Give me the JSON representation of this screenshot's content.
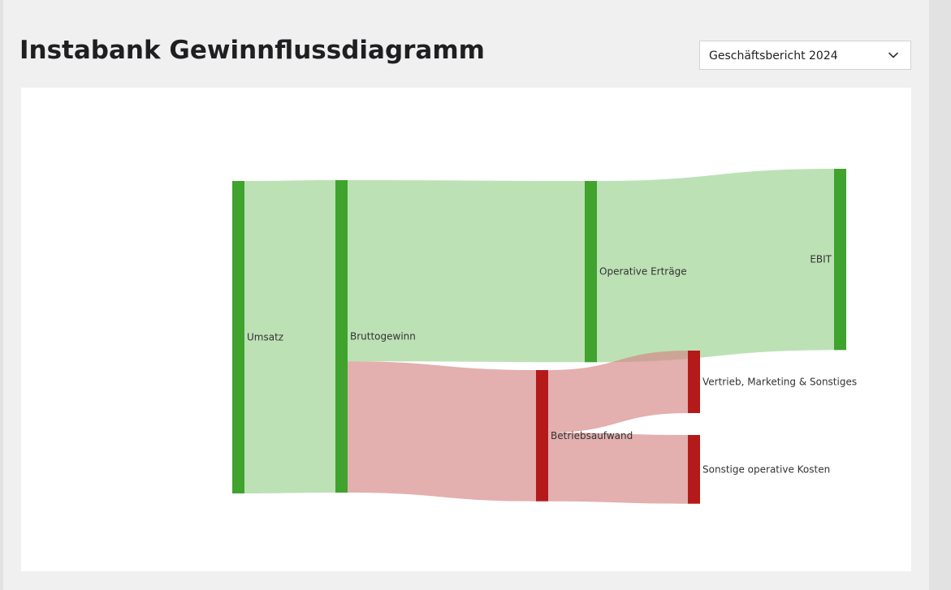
{
  "page": {
    "title": "Instabank Gewinnflussdiagramm"
  },
  "report_select": {
    "selected": "Geschäftsbericht 2024",
    "icon": "chevron-down-icon"
  },
  "colors": {
    "profit_node": "#3fa32d",
    "cost_node": "#b51a1a",
    "profit_link": "rgba(162,214,152,0.72)",
    "cost_link": "rgba(212,134,134,0.66)"
  },
  "chart_data": {
    "type": "sankey",
    "title": "",
    "unit": "",
    "nodes": [
      {
        "id": "umsatz",
        "label": "Umsatz",
        "kind": "profit"
      },
      {
        "id": "bruttogewinn",
        "label": "Bruttogewinn",
        "kind": "profit"
      },
      {
        "id": "operative_ertraege",
        "label": "Operative Erträge",
        "kind": "profit"
      },
      {
        "id": "ebit",
        "label": "EBIT",
        "kind": "profit"
      },
      {
        "id": "betriebsaufwand",
        "label": "Betriebsaufwand",
        "kind": "cost"
      },
      {
        "id": "vertrieb",
        "label": "Vertrieb, Marketing & Sonstiges",
        "kind": "cost"
      },
      {
        "id": "sonstige",
        "label": "Sonstige operative Kosten",
        "kind": "cost"
      }
    ],
    "links": [
      {
        "source": "umsatz",
        "target": "bruttogewinn",
        "value": 100,
        "kind": "profit"
      },
      {
        "source": "bruttogewinn",
        "target": "operative_ertraege",
        "value": 58,
        "kind": "profit"
      },
      {
        "source": "bruttogewinn",
        "target": "betriebsaufwand",
        "value": 42,
        "kind": "cost"
      },
      {
        "source": "operative_ertraege",
        "target": "ebit",
        "value": 58,
        "kind": "profit"
      },
      {
        "source": "betriebsaufwand",
        "target": "vertrieb",
        "value": 20,
        "kind": "cost"
      },
      {
        "source": "betriebsaufwand",
        "target": "sonstige",
        "value": 22,
        "kind": "cost"
      }
    ]
  }
}
